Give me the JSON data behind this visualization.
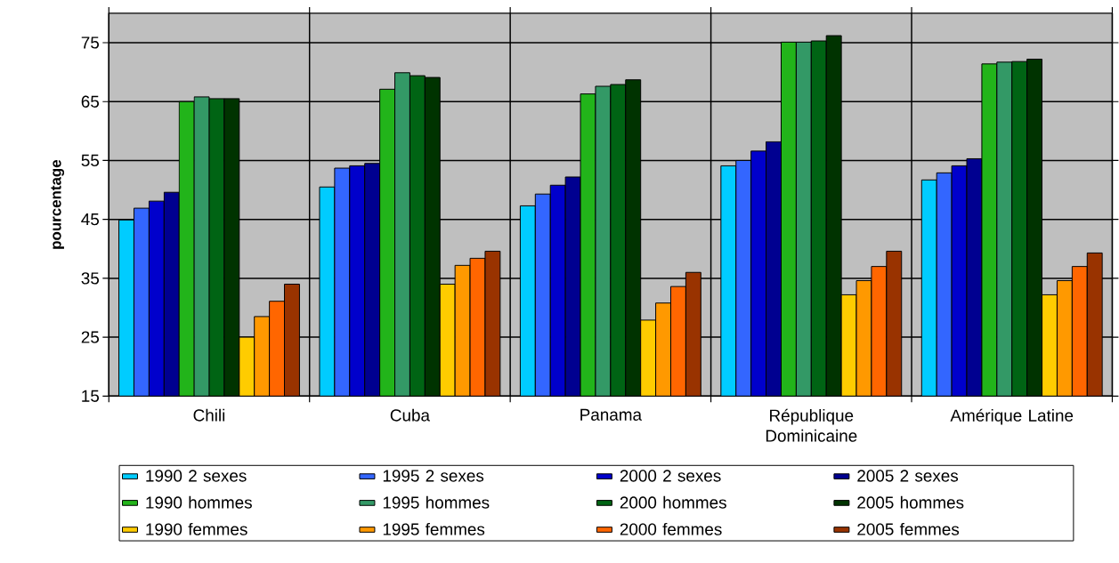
{
  "chart_data": {
    "type": "bar",
    "ylabel": "pourcentage",
    "categories": [
      "Chili",
      "Cuba",
      "Panama",
      "République Dominicaine",
      "Amérique Latine"
    ],
    "series": [
      {
        "name": "1990 2 sexes",
        "color": "#00ccff",
        "values": [
          44.9,
          50.5,
          47.3,
          54.1,
          51.7
        ]
      },
      {
        "name": "1995 2 sexes",
        "color": "#3366ff",
        "values": [
          46.9,
          53.7,
          49.3,
          55.0,
          52.9
        ]
      },
      {
        "name": "2000 2 sexes",
        "color": "#0000cc",
        "values": [
          48.1,
          54.1,
          50.8,
          56.6,
          54.1
        ]
      },
      {
        "name": "2005 2 sexes",
        "color": "#000090",
        "values": [
          49.6,
          54.5,
          52.2,
          58.2,
          55.3
        ]
      },
      {
        "name": "1990 hommes",
        "color": "#22b41a",
        "values": [
          65.0,
          67.1,
          66.3,
          75.1,
          71.4
        ]
      },
      {
        "name": "1995 hommes",
        "color": "#339966",
        "values": [
          65.8,
          69.9,
          67.6,
          75.1,
          71.7
        ]
      },
      {
        "name": "2000 hommes",
        "color": "#006414",
        "values": [
          65.5,
          69.4,
          67.9,
          75.3,
          71.8
        ]
      },
      {
        "name": "2005 hommes",
        "color": "#003300",
        "values": [
          65.5,
          69.1,
          68.7,
          76.2,
          72.2
        ]
      },
      {
        "name": "1990 femmes",
        "color": "#ffcc00",
        "values": [
          25.0,
          34.0,
          27.9,
          32.2,
          32.2
        ]
      },
      {
        "name": "1995 femmes",
        "color": "#ff9900",
        "values": [
          28.5,
          37.2,
          30.8,
          34.6,
          34.6
        ]
      },
      {
        "name": "2000 femmes",
        "color": "#ff6600",
        "values": [
          31.1,
          38.4,
          33.6,
          37.0,
          37.0
        ]
      },
      {
        "name": "2005 femmes",
        "color": "#993300",
        "values": [
          34.0,
          39.6,
          36.0,
          39.6,
          39.3
        ]
      }
    ],
    "ylim": [
      15,
      80
    ],
    "yticks": [
      15,
      25,
      35,
      45,
      55,
      65,
      75
    ],
    "grid": true,
    "legend": "bottom"
  }
}
